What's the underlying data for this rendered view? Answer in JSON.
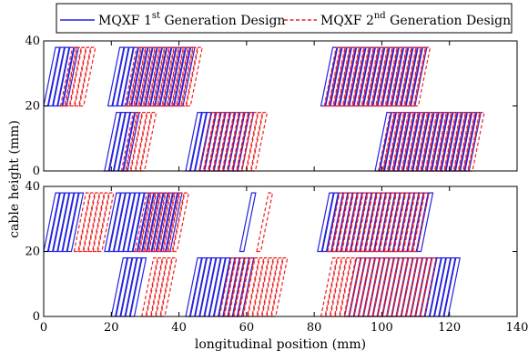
{
  "chart_data": {
    "type": "line",
    "xlabel": "longitudinal position (mm)",
    "ylabel": "cable height (mm)",
    "xlim": [
      0,
      140
    ],
    "ylim": [
      0,
      40
    ],
    "xticks": [
      0,
      20,
      40,
      60,
      80,
      100,
      120,
      140
    ],
    "yticks": [
      0,
      20,
      40
    ],
    "legend": {
      "placement": "top",
      "entries": [
        {
          "base": "MQXF 1",
          "sup": "st",
          "rest": " Generation Design",
          "color": "#2222e0",
          "style": "solid"
        },
        {
          "base": "MQXF 2",
          "sup": "nd",
          "rest": " Generation Design",
          "color": "#ee2222",
          "style": "dashed"
        }
      ]
    },
    "panels": [
      {
        "name": "top",
        "series": [
          {
            "style": "solid",
            "blocks": [
              {
                "y0": 20,
                "y1": 38,
                "start": 0,
                "count": 5,
                "pitch": 1.4,
                "width": 1.2,
                "shear": 3.5
              },
              {
                "y0": 20,
                "y1": 38,
                "start": 19,
                "count": 16,
                "pitch": 1.4,
                "width": 1.2,
                "shear": 3.5
              },
              {
                "y0": 0,
                "y1": 18,
                "start": 18,
                "count": 5,
                "pitch": 1.4,
                "width": 1.2,
                "shear": 3.5
              },
              {
                "y0": 0,
                "y1": 18,
                "start": 42,
                "count": 12,
                "pitch": 1.4,
                "width": 1.2,
                "shear": 3.5
              },
              {
                "y0": 20,
                "y1": 38,
                "start": 82,
                "count": 20,
                "pitch": 1.4,
                "width": 1.2,
                "shear": 3.5
              },
              {
                "y0": 0,
                "y1": 18,
                "start": 98,
                "count": 20,
                "pitch": 1.4,
                "width": 1.2,
                "shear": 3.5
              }
            ]
          },
          {
            "style": "dashed",
            "blocks": [
              {
                "y0": 20,
                "y1": 38,
                "start": 5,
                "count": 5,
                "pitch": 1.4,
                "width": 1.2,
                "shear": 3.5
              },
              {
                "y0": 20,
                "y1": 38,
                "start": 24,
                "count": 14,
                "pitch": 1.4,
                "width": 1.2,
                "shear": 3.5
              },
              {
                "y0": 0,
                "y1": 18,
                "start": 23,
                "count": 5,
                "pitch": 1.4,
                "width": 1.2,
                "shear": 3.5
              },
              {
                "y0": 0,
                "y1": 18,
                "start": 46,
                "count": 12,
                "pitch": 1.4,
                "width": 1.2,
                "shear": 3.5
              },
              {
                "y0": 20,
                "y1": 38,
                "start": 83,
                "count": 20,
                "pitch": 1.4,
                "width": 1.2,
                "shear": 3.5
              },
              {
                "y0": 0,
                "y1": 18,
                "start": 99,
                "count": 20,
                "pitch": 1.4,
                "width": 1.2,
                "shear": 3.5
              }
            ]
          }
        ]
      },
      {
        "name": "bottom",
        "series": [
          {
            "style": "solid",
            "blocks": [
              {
                "y0": 20,
                "y1": 38,
                "start": 0,
                "count": 6,
                "pitch": 1.4,
                "width": 1.2,
                "shear": 3.5
              },
              {
                "y0": 20,
                "y1": 38,
                "start": 18,
                "count": 14,
                "pitch": 1.4,
                "width": 1.2,
                "shear": 3.5
              },
              {
                "y0": 0,
                "y1": 18,
                "start": 20,
                "count": 5,
                "pitch": 1.4,
                "width": 1.2,
                "shear": 3.5
              },
              {
                "y0": 0,
                "y1": 18,
                "start": 42,
                "count": 12,
                "pitch": 1.4,
                "width": 1.2,
                "shear": 3.5
              },
              {
                "y0": 20,
                "y1": 38,
                "start": 58,
                "count": 1,
                "pitch": 1.4,
                "width": 1.2,
                "shear": 3.5
              },
              {
                "y0": 20,
                "y1": 38,
                "start": 81,
                "count": 22,
                "pitch": 1.4,
                "width": 1.2,
                "shear": 3.5
              },
              {
                "y0": 0,
                "y1": 18,
                "start": 89,
                "count": 22,
                "pitch": 1.4,
                "width": 1.2,
                "shear": 3.5
              }
            ]
          },
          {
            "style": "dashed",
            "blocks": [
              {
                "y0": 20,
                "y1": 38,
                "start": 9,
                "count": 6,
                "pitch": 1.4,
                "width": 1.2,
                "shear": 3.5
              },
              {
                "y0": 20,
                "y1": 38,
                "start": 27,
                "count": 9,
                "pitch": 1.4,
                "width": 1.2,
                "shear": 3.5
              },
              {
                "y0": 0,
                "y1": 18,
                "start": 29,
                "count": 5,
                "pitch": 1.4,
                "width": 1.2,
                "shear": 3.5
              },
              {
                "y0": 0,
                "y1": 18,
                "start": 52,
                "count": 12,
                "pitch": 1.4,
                "width": 1.2,
                "shear": 3.5
              },
              {
                "y0": 20,
                "y1": 38,
                "start": 63,
                "count": 1,
                "pitch": 1.4,
                "width": 1.2,
                "shear": 3.5
              },
              {
                "y0": 20,
                "y1": 38,
                "start": 84,
                "count": 19,
                "pitch": 1.4,
                "width": 1.2,
                "shear": 3.5
              },
              {
                "y0": 0,
                "y1": 18,
                "start": 82,
                "count": 22,
                "pitch": 1.4,
                "width": 1.2,
                "shear": 3.5
              }
            ]
          }
        ]
      }
    ]
  }
}
